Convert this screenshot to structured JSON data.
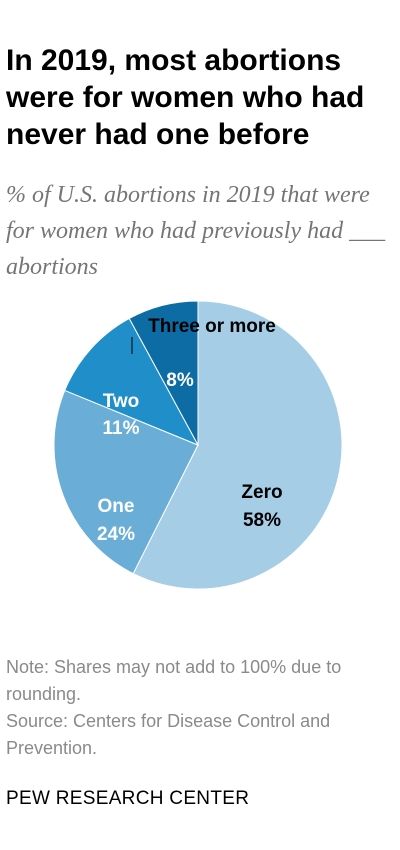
{
  "header": {
    "title": "In 2019, most abortions were for women who had never had one before",
    "subtitle": "% of U.S. abortions in 2019 that were for women who had previously had ___ abortions"
  },
  "chart_data": {
    "type": "pie",
    "title": "In 2019, most abortions were for women who had never had one before",
    "subtitle": "% of U.S. abortions in 2019 that were for women who had previously had ___ abortions",
    "slices": [
      {
        "label": "Zero",
        "value": 58,
        "value_label": "58%",
        "color": "#a6cde6"
      },
      {
        "label": "One",
        "value": 24,
        "value_label": "24%",
        "color": "#6aaed8"
      },
      {
        "label": "Two",
        "value": 11,
        "value_label": "11%",
        "color": "#1f8ec9"
      },
      {
        "label": "Three or more",
        "value": 8,
        "value_label": "8%",
        "color": "#0d6ca3"
      }
    ]
  },
  "footer": {
    "note": "Note: Shares may not add to 100% due to rounding.",
    "source": "Source: Centers for Disease Control and Prevention.",
    "brand": "PEW RESEARCH CENTER"
  }
}
